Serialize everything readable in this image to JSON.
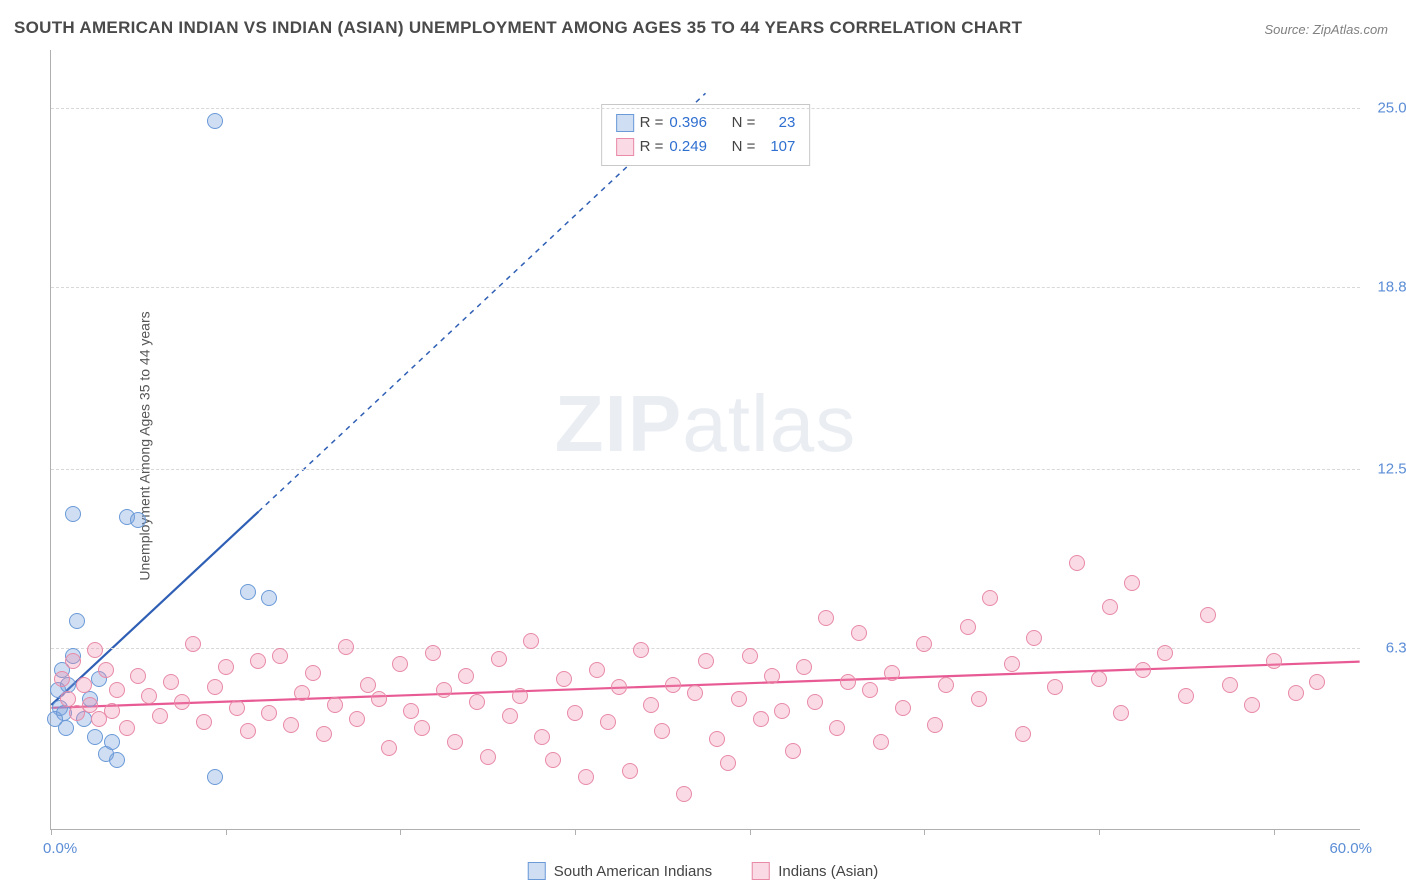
{
  "title": "SOUTH AMERICAN INDIAN VS INDIAN (ASIAN) UNEMPLOYMENT AMONG AGES 35 TO 44 YEARS CORRELATION CHART",
  "source": "Source: ZipAtlas.com",
  "ylabel": "Unemployment Among Ages 35 to 44 years",
  "watermark_a": "ZIP",
  "watermark_b": "atlas",
  "chart": {
    "type": "scatter",
    "xlim": [
      0,
      60
    ],
    "ylim": [
      0,
      27
    ],
    "xtick_positions": [
      0,
      8,
      16,
      24,
      32,
      40,
      48,
      56
    ],
    "ytick_labels": [
      {
        "value": 6.3,
        "label": "6.3%"
      },
      {
        "value": 12.5,
        "label": "12.5%"
      },
      {
        "value": 18.8,
        "label": "18.8%"
      },
      {
        "value": 25.0,
        "label": "25.0%"
      }
    ],
    "x_start_label": "0.0%",
    "x_end_label": "60.0%",
    "background_color": "#ffffff",
    "grid_color": "#d8d8d8",
    "series": [
      {
        "key": "south_american",
        "label": "South American Indians",
        "fill": "rgba(120,160,220,0.35)",
        "stroke": "#6a9ad8",
        "R": "0.396",
        "N": "23",
        "trend": {
          "x1": 0,
          "y1": 4.3,
          "x2": 9.5,
          "y2": 11.0,
          "dash_x2": 30,
          "dash_y2": 25.5,
          "color": "#2f5fb5"
        },
        "points": [
          [
            0.3,
            4.8
          ],
          [
            0.5,
            5.5
          ],
          [
            0.4,
            4.2
          ],
          [
            0.8,
            5.0
          ],
          [
            1.0,
            6.0
          ],
          [
            0.6,
            4.0
          ],
          [
            1.2,
            7.2
          ],
          [
            1.5,
            3.8
          ],
          [
            1.8,
            4.5
          ],
          [
            2.0,
            3.2
          ],
          [
            2.2,
            5.2
          ],
          [
            2.5,
            2.6
          ],
          [
            2.8,
            3.0
          ],
          [
            3.0,
            2.4
          ],
          [
            3.5,
            10.8
          ],
          [
            4.0,
            10.7
          ],
          [
            1.0,
            10.9
          ],
          [
            7.5,
            1.8
          ],
          [
            9.0,
            8.2
          ],
          [
            10.0,
            8.0
          ],
          [
            0.2,
            3.8
          ],
          [
            0.7,
            3.5
          ],
          [
            7.5,
            24.5
          ]
        ]
      },
      {
        "key": "indian_asian",
        "label": "Indians (Asian)",
        "fill": "rgba(240,140,170,0.32)",
        "stroke": "#e88aa8",
        "R": "0.249",
        "N": "107",
        "trend": {
          "x1": 0,
          "y1": 4.2,
          "x2": 60,
          "y2": 5.8,
          "color": "#e85a94"
        },
        "points": [
          [
            0.5,
            5.2
          ],
          [
            0.8,
            4.5
          ],
          [
            1.0,
            5.8
          ],
          [
            1.2,
            4.0
          ],
          [
            1.5,
            5.0
          ],
          [
            1.8,
            4.3
          ],
          [
            2.0,
            6.2
          ],
          [
            2.2,
            3.8
          ],
          [
            2.5,
            5.5
          ],
          [
            2.8,
            4.1
          ],
          [
            3.0,
            4.8
          ],
          [
            3.5,
            3.5
          ],
          [
            4.0,
            5.3
          ],
          [
            4.5,
            4.6
          ],
          [
            5.0,
            3.9
          ],
          [
            5.5,
            5.1
          ],
          [
            6.0,
            4.4
          ],
          [
            6.5,
            6.4
          ],
          [
            7.0,
            3.7
          ],
          [
            7.5,
            4.9
          ],
          [
            8.0,
            5.6
          ],
          [
            8.5,
            4.2
          ],
          [
            9.0,
            3.4
          ],
          [
            9.5,
            5.8
          ],
          [
            10.0,
            4.0
          ],
          [
            10.5,
            6.0
          ],
          [
            11.0,
            3.6
          ],
          [
            11.5,
            4.7
          ],
          [
            12.0,
            5.4
          ],
          [
            12.5,
            3.3
          ],
          [
            13.0,
            4.3
          ],
          [
            13.5,
            6.3
          ],
          [
            14.0,
            3.8
          ],
          [
            14.5,
            5.0
          ],
          [
            15.0,
            4.5
          ],
          [
            15.5,
            2.8
          ],
          [
            16.0,
            5.7
          ],
          [
            16.5,
            4.1
          ],
          [
            17.0,
            3.5
          ],
          [
            17.5,
            6.1
          ],
          [
            18.0,
            4.8
          ],
          [
            18.5,
            3.0
          ],
          [
            19.0,
            5.3
          ],
          [
            19.5,
            4.4
          ],
          [
            20.0,
            2.5
          ],
          [
            20.5,
            5.9
          ],
          [
            21.0,
            3.9
          ],
          [
            21.5,
            4.6
          ],
          [
            22.0,
            6.5
          ],
          [
            22.5,
            3.2
          ],
          [
            23.0,
            2.4
          ],
          [
            23.5,
            5.2
          ],
          [
            24.0,
            4.0
          ],
          [
            24.5,
            1.8
          ],
          [
            25.0,
            5.5
          ],
          [
            25.5,
            3.7
          ],
          [
            26.0,
            4.9
          ],
          [
            26.5,
            2.0
          ],
          [
            27.0,
            6.2
          ],
          [
            27.5,
            4.3
          ],
          [
            28.0,
            3.4
          ],
          [
            28.5,
            5.0
          ],
          [
            29.0,
            1.2
          ],
          [
            29.5,
            4.7
          ],
          [
            30.0,
            5.8
          ],
          [
            30.5,
            3.1
          ],
          [
            31.0,
            2.3
          ],
          [
            31.5,
            4.5
          ],
          [
            32.0,
            6.0
          ],
          [
            32.5,
            3.8
          ],
          [
            33.0,
            5.3
          ],
          [
            33.5,
            4.1
          ],
          [
            34.0,
            2.7
          ],
          [
            34.5,
            5.6
          ],
          [
            35.0,
            4.4
          ],
          [
            35.5,
            7.3
          ],
          [
            36.0,
            3.5
          ],
          [
            36.5,
            5.1
          ],
          [
            37.0,
            6.8
          ],
          [
            37.5,
            4.8
          ],
          [
            38.0,
            3.0
          ],
          [
            38.5,
            5.4
          ],
          [
            39.0,
            4.2
          ],
          [
            40.0,
            6.4
          ],
          [
            40.5,
            3.6
          ],
          [
            41.0,
            5.0
          ],
          [
            42.0,
            7.0
          ],
          [
            42.5,
            4.5
          ],
          [
            43.0,
            8.0
          ],
          [
            44.0,
            5.7
          ],
          [
            44.5,
            3.3
          ],
          [
            45.0,
            6.6
          ],
          [
            46.0,
            4.9
          ],
          [
            47.0,
            9.2
          ],
          [
            48.0,
            5.2
          ],
          [
            48.5,
            7.7
          ],
          [
            49.0,
            4.0
          ],
          [
            49.5,
            8.5
          ],
          [
            50.0,
            5.5
          ],
          [
            51.0,
            6.1
          ],
          [
            52.0,
            4.6
          ],
          [
            53.0,
            7.4
          ],
          [
            54.0,
            5.0
          ],
          [
            55.0,
            4.3
          ],
          [
            56.0,
            5.8
          ],
          [
            57.0,
            4.7
          ],
          [
            58.0,
            5.1
          ]
        ]
      }
    ]
  },
  "legend_stat_prefix_r": "R =",
  "legend_stat_prefix_n": "N ="
}
